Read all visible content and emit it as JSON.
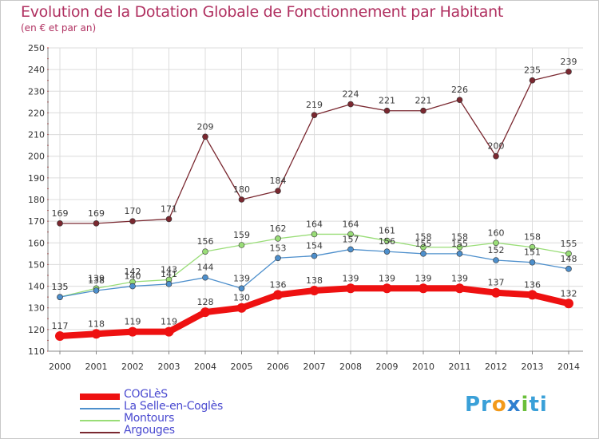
{
  "header": {
    "title": "Evolution de la Dotation Globale de Fonctionnement par Habitant",
    "subtitle": "(en € et par an)"
  },
  "logo": {
    "text": "Proxiti",
    "parts": [
      "Pr",
      "o",
      "x",
      "i",
      "ti"
    ],
    "colors": [
      "#3aa0d8",
      "#f29a1b",
      "#2e7fd0",
      "#6abf3a",
      "#3aa0d8"
    ]
  },
  "chart_data": {
    "type": "line",
    "title": "Evolution de la Dotation Globale de Fonctionnement par Habitant",
    "subtitle": "(en € et par an)",
    "xlabel": "",
    "ylabel": "",
    "x": [
      2000,
      2001,
      2002,
      2003,
      2004,
      2005,
      2006,
      2007,
      2008,
      2009,
      2010,
      2011,
      2012,
      2013,
      2014
    ],
    "ylim": [
      110,
      250
    ],
    "yticks": [
      110,
      120,
      130,
      140,
      150,
      160,
      170,
      180,
      190,
      200,
      210,
      220,
      230,
      240,
      250
    ],
    "grid": true,
    "legend_position": "bottom-left",
    "series": [
      {
        "name": "COGLèS",
        "color": "#ee1111",
        "values": [
          117,
          118,
          119,
          119,
          128,
          130,
          136,
          138,
          139,
          139,
          139,
          139,
          137,
          136,
          132
        ]
      },
      {
        "name": "La Selle-en-Coglès",
        "color": "#4d8fcc",
        "values": [
          135,
          138,
          140,
          141,
          144,
          139,
          153,
          154,
          157,
          156,
          155,
          155,
          152,
          151,
          148
        ]
      },
      {
        "name": "Montours",
        "color": "#99dd77",
        "values": [
          135,
          139,
          142,
          143,
          156,
          159,
          162,
          164,
          164,
          161,
          158,
          158,
          160,
          158,
          155
        ]
      },
      {
        "name": "Argouges",
        "color": "#7a2830",
        "values": [
          169,
          169,
          170,
          171,
          209,
          180,
          184,
          219,
          224,
          221,
          221,
          226,
          200,
          235,
          239
        ]
      }
    ]
  }
}
